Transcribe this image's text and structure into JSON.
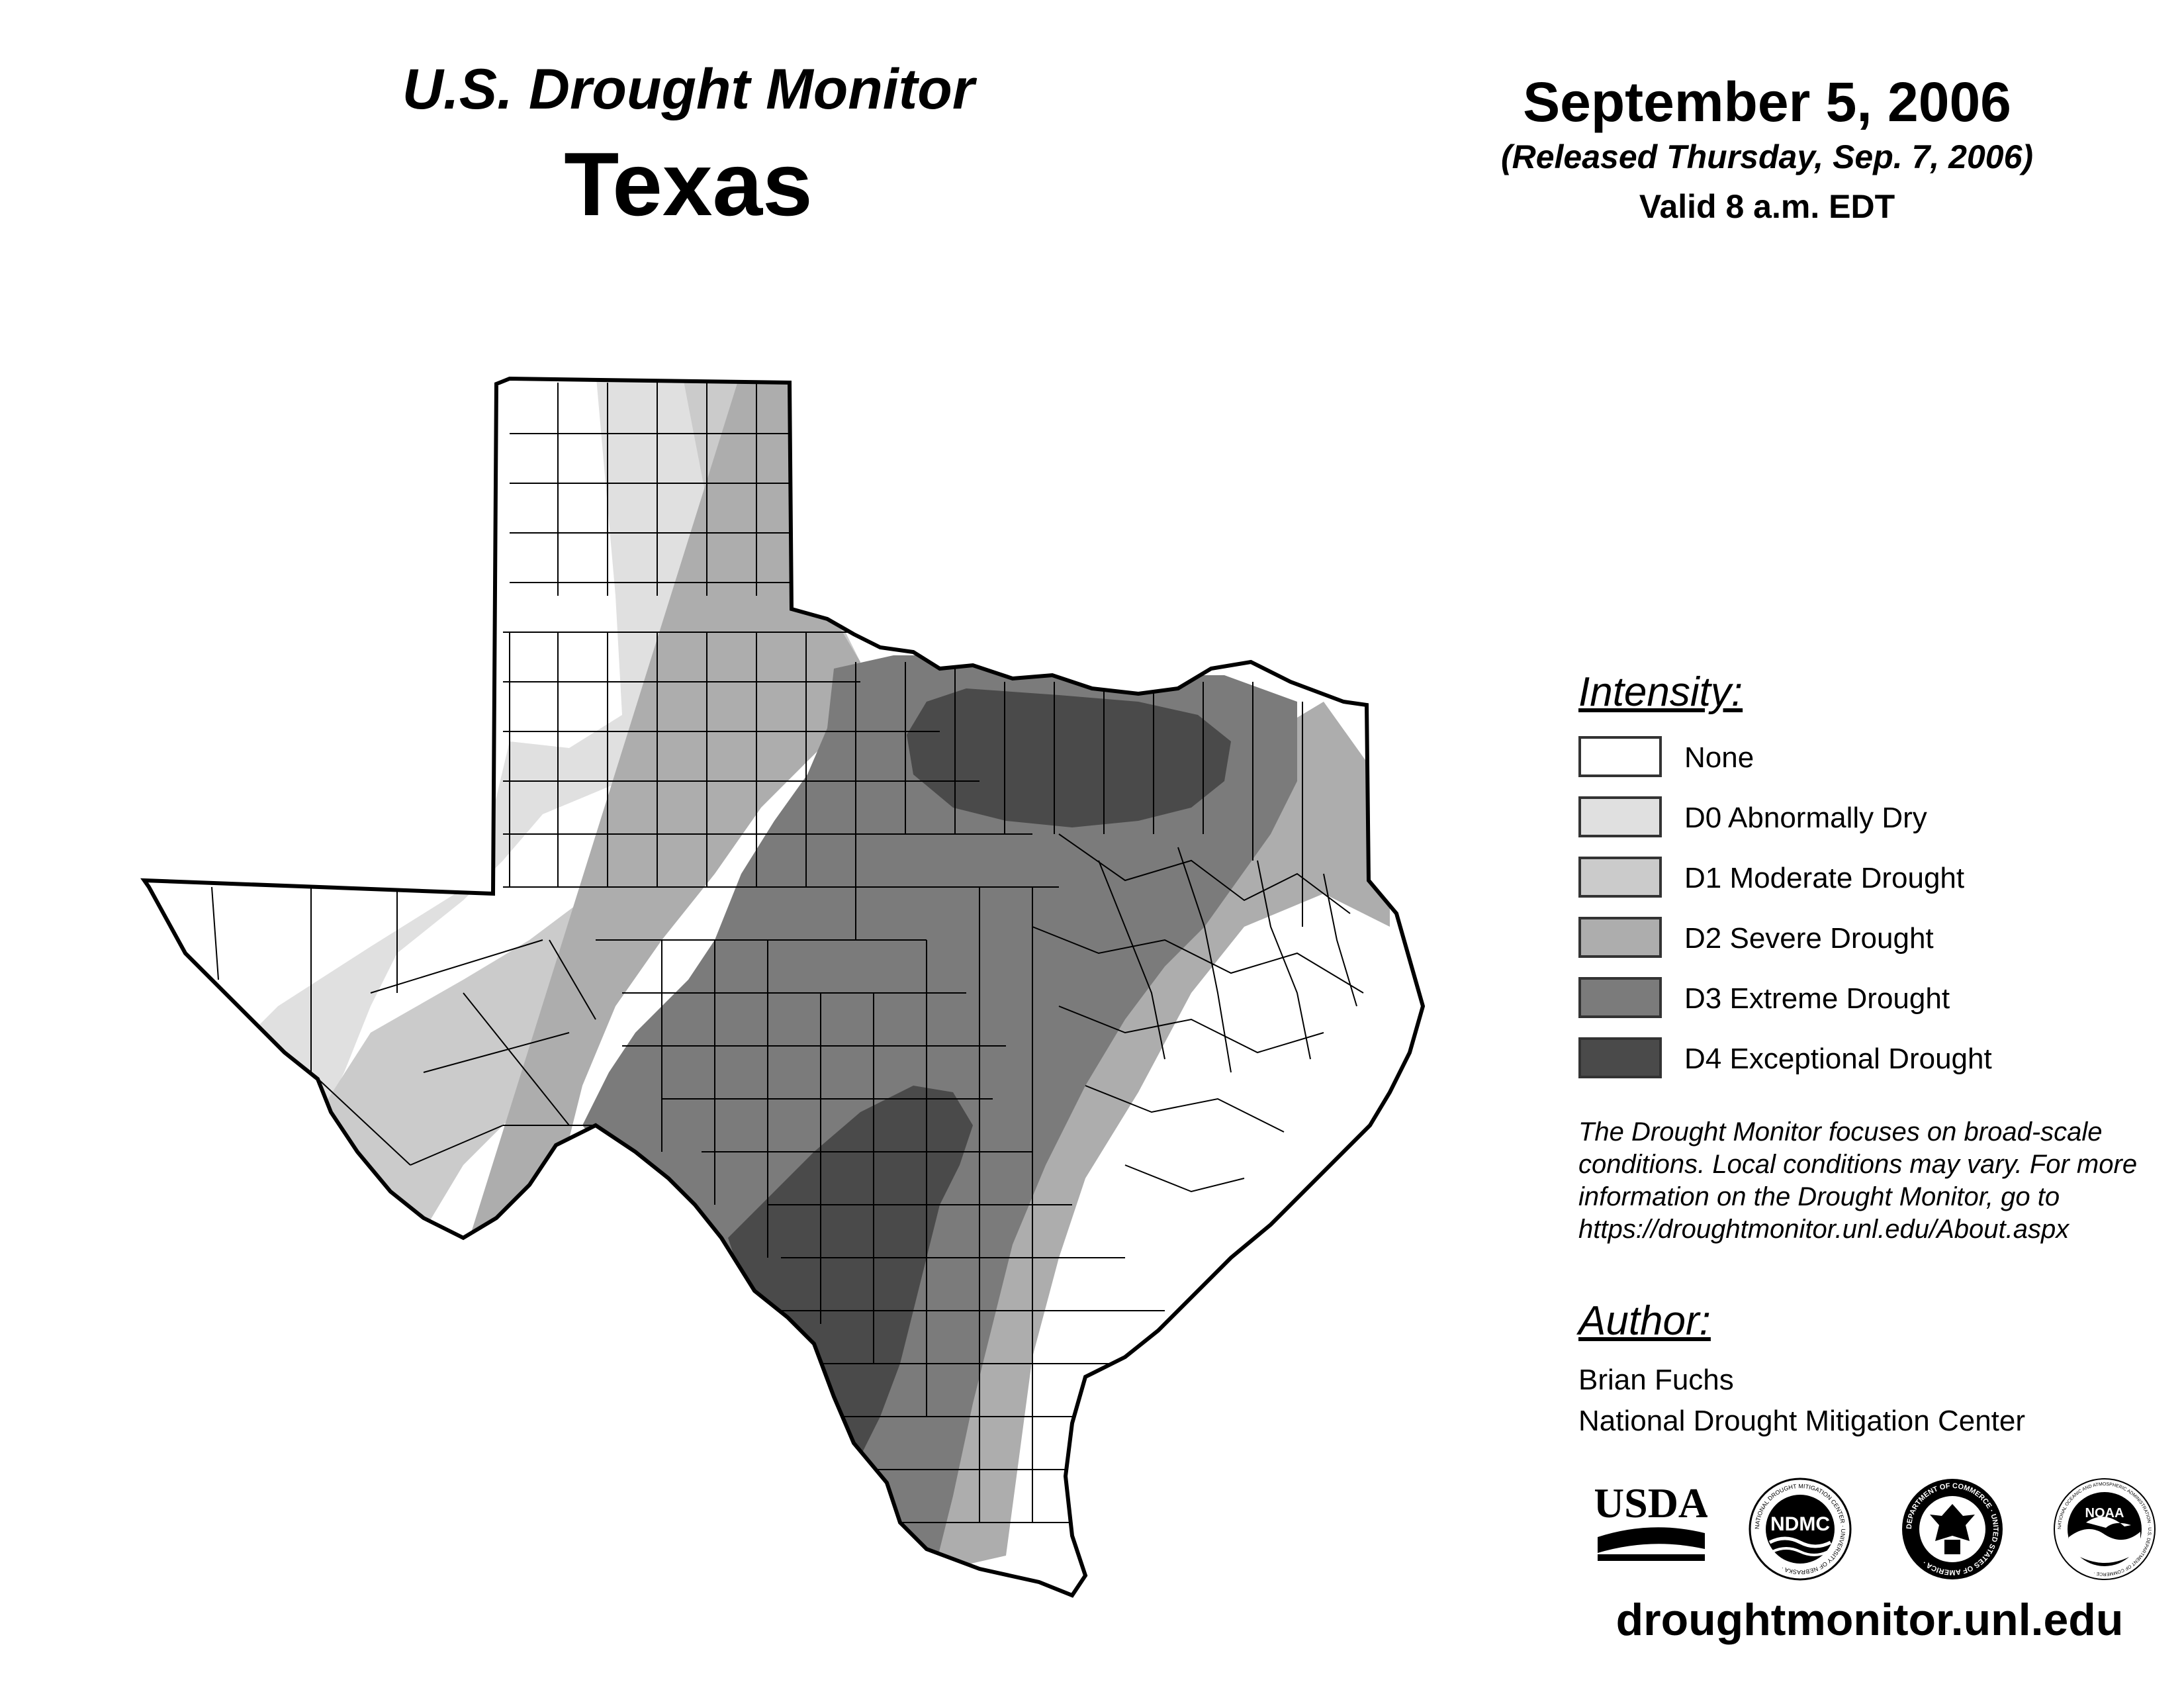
{
  "header": {
    "monitor_title": "U.S. Drought Monitor",
    "state": "Texas",
    "date": "September 5, 2006",
    "released": "(Released Thursday, Sep. 7, 2006)",
    "valid": "Valid 8 a.m. EDT"
  },
  "legend": {
    "title": "Intensity:",
    "items": [
      {
        "label": "None",
        "color": "#ffffff"
      },
      {
        "label": "D0 Abnormally Dry",
        "color": "#e0e0e0"
      },
      {
        "label": "D1 Moderate Drought",
        "color": "#cbcbcb"
      },
      {
        "label": "D2 Severe Drought",
        "color": "#adadad"
      },
      {
        "label": "D3 Extreme Drought",
        "color": "#7b7b7b"
      },
      {
        "label": "D4 Exceptional Drought",
        "color": "#4a4a4a"
      }
    ]
  },
  "note": {
    "lines": [
      "The Drought Monitor focuses on broad-scale",
      "conditions. Local conditions may vary. For more",
      "information on the Drought Monitor, go to",
      "https://droughtmonitor.unl.edu/About.aspx"
    ]
  },
  "author": {
    "title": "Author:",
    "name": "Brian Fuchs",
    "org": "National Drought Mitigation Center"
  },
  "logos": {
    "usda": "USDA",
    "ndmc": "NDMC",
    "ndmc_ring": "NATIONAL DROUGHT MITIGATION CENTER · UNIVERSITY OF NEBRASKA ·",
    "commerce_ring": "DEPARTMENT OF COMMERCE · UNITED STATES OF AMERICA ·",
    "noaa": "NOAA",
    "noaa_ring": "NATIONAL OCEANIC AND ATMOSPHERIC ADMINISTRATION · U.S. DEPARTMENT OF COMMERCE ·"
  },
  "footer": {
    "url": "droughtmonitor.unl.edu"
  }
}
